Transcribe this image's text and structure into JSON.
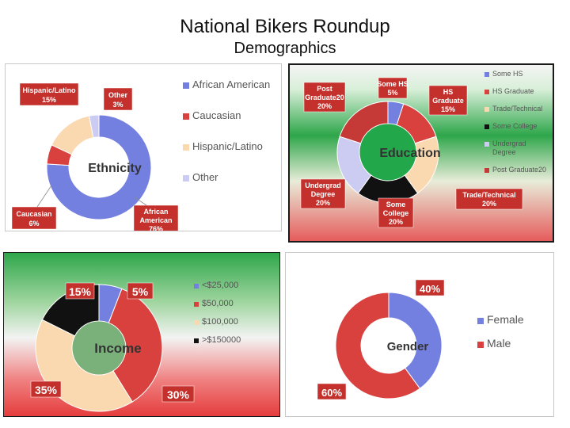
{
  "page": {
    "title": "National Bikers Roundup",
    "subtitle": "Demographics"
  },
  "colors": {
    "blue": "#7480e0",
    "red": "#d9413f",
    "peach": "#fbd9b0",
    "black": "#111111",
    "lavender": "#ccccf2",
    "label_bg": "#c4312c"
  },
  "chart_data": [
    {
      "type": "pie",
      "title": "Ethnicity",
      "categories": [
        "African American",
        "Caucasian",
        "Hispanic/Latino",
        "Other"
      ],
      "values": [
        76,
        6,
        15,
        3
      ],
      "colors": [
        "#7480e0",
        "#d9413f",
        "#fbd9b0",
        "#ccccf2"
      ],
      "data_labels": [
        [
          "African",
          "American",
          "76%"
        ],
        [
          "Caucasian",
          "6%"
        ],
        [
          "Hispanic/Latino",
          "15%"
        ],
        [
          "Other",
          "3%"
        ]
      ],
      "legend": "right"
    },
    {
      "type": "pie",
      "title": "Education",
      "categories": [
        "Some HS",
        "HS Graduate",
        "Trade/Technical",
        "Some College",
        "Undergrad Degree",
        "Post Graduate20"
      ],
      "values": [
        5,
        15,
        20,
        20,
        20,
        20
      ],
      "colors": [
        "#7480e0",
        "#d9413f",
        "#fbd9b0",
        "#111111",
        "#ccccf2",
        "#c53a36"
      ],
      "legend_labels": [
        [
          "Some HS"
        ],
        [
          "HS Graduate"
        ],
        [
          "Trade/Technical"
        ],
        [
          "Some College"
        ],
        [
          "Undergrad",
          "Degree"
        ],
        [
          "Post Graduate20"
        ]
      ],
      "data_labels": [
        [
          "Some HS",
          "5%"
        ],
        [
          "HS",
          "Graduate",
          "15%"
        ],
        [
          "Trade/Technical",
          "20%"
        ],
        [
          "Some",
          "College",
          "20%"
        ],
        [
          "Undergrad",
          "Degree",
          "20%"
        ],
        [
          "Post",
          "Graduate20",
          "20%"
        ]
      ],
      "legend": "right"
    },
    {
      "type": "pie",
      "title": "Income",
      "categories": [
        "<$25,000",
        "$50,000",
        "$100,000",
        ">$150000"
      ],
      "values": [
        5,
        30,
        35,
        15
      ],
      "colors": [
        "#7480e0",
        "#d9413f",
        "#fbd9b0",
        "#111111"
      ],
      "data_labels": [
        [
          "5%"
        ],
        [
          "30%"
        ],
        [
          "35%"
        ],
        [
          "15%"
        ]
      ],
      "legend": "right"
    },
    {
      "type": "pie",
      "title": "Gender",
      "categories": [
        "Female",
        "Male"
      ],
      "values": [
        40,
        60
      ],
      "colors": [
        "#7480e0",
        "#d9413f"
      ],
      "data_labels": [
        [
          "40%"
        ],
        [
          "60%"
        ]
      ],
      "legend": "right"
    }
  ]
}
